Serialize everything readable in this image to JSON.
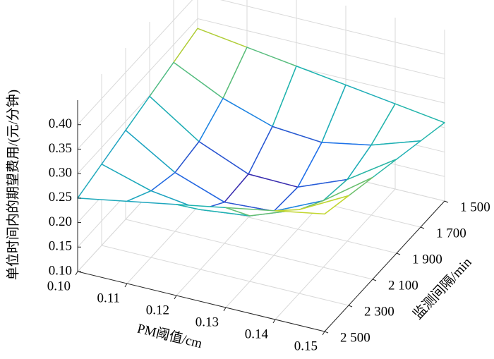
{
  "chart_data": {
    "type": "surface",
    "xlabel": "PM阈值/cm",
    "ylabel": "监测间隔/min",
    "zlabel": "单位时间内的期望费用/(元/分钟)",
    "x": [
      0.1,
      0.11,
      0.12,
      0.13,
      0.14,
      0.15
    ],
    "y": [
      1500,
      1700,
      1900,
      2100,
      2300,
      2500
    ],
    "z": [
      [
        0.33,
        0.314,
        0.298,
        0.282,
        0.266,
        0.25
      ],
      [
        0.316,
        0.265,
        0.23,
        0.22,
        0.236,
        0.268
      ],
      [
        0.302,
        0.232,
        0.188,
        0.184,
        0.222,
        0.286
      ],
      [
        0.288,
        0.224,
        0.186,
        0.19,
        0.234,
        0.304
      ],
      [
        0.274,
        0.243,
        0.226,
        0.236,
        0.271,
        0.322
      ],
      [
        0.26,
        0.276,
        0.292,
        0.308,
        0.324,
        0.34
      ]
    ],
    "colormap": "parula",
    "xlim": [
      0.1,
      0.15
    ],
    "xticks": [
      {
        "value": 0.1,
        "label": "0.10"
      },
      0.11,
      0.12,
      0.13,
      0.14,
      0.15
    ],
    "ylim": [
      1500,
      2500
    ],
    "yticks": [
      {
        "value": 1500,
        "label": "1 500"
      },
      {
        "value": 1700,
        "label": "1 700"
      },
      {
        "value": 1900,
        "label": "1 900"
      },
      {
        "value": 2100,
        "label": "2 100"
      },
      {
        "value": 2300,
        "label": "2 300"
      },
      {
        "value": 2500,
        "label": "2 500"
      }
    ],
    "zlim": [
      0.1,
      0.45
    ],
    "zticks": [
      {
        "value": 0.1,
        "label": "0.10"
      },
      0.15,
      {
        "value": 0.2,
        "label": "0.20"
      },
      0.25,
      {
        "value": 0.3,
        "label": "0.30"
      },
      0.35,
      {
        "value": 0.4,
        "label": "0.40"
      }
    ],
    "grid": true
  }
}
